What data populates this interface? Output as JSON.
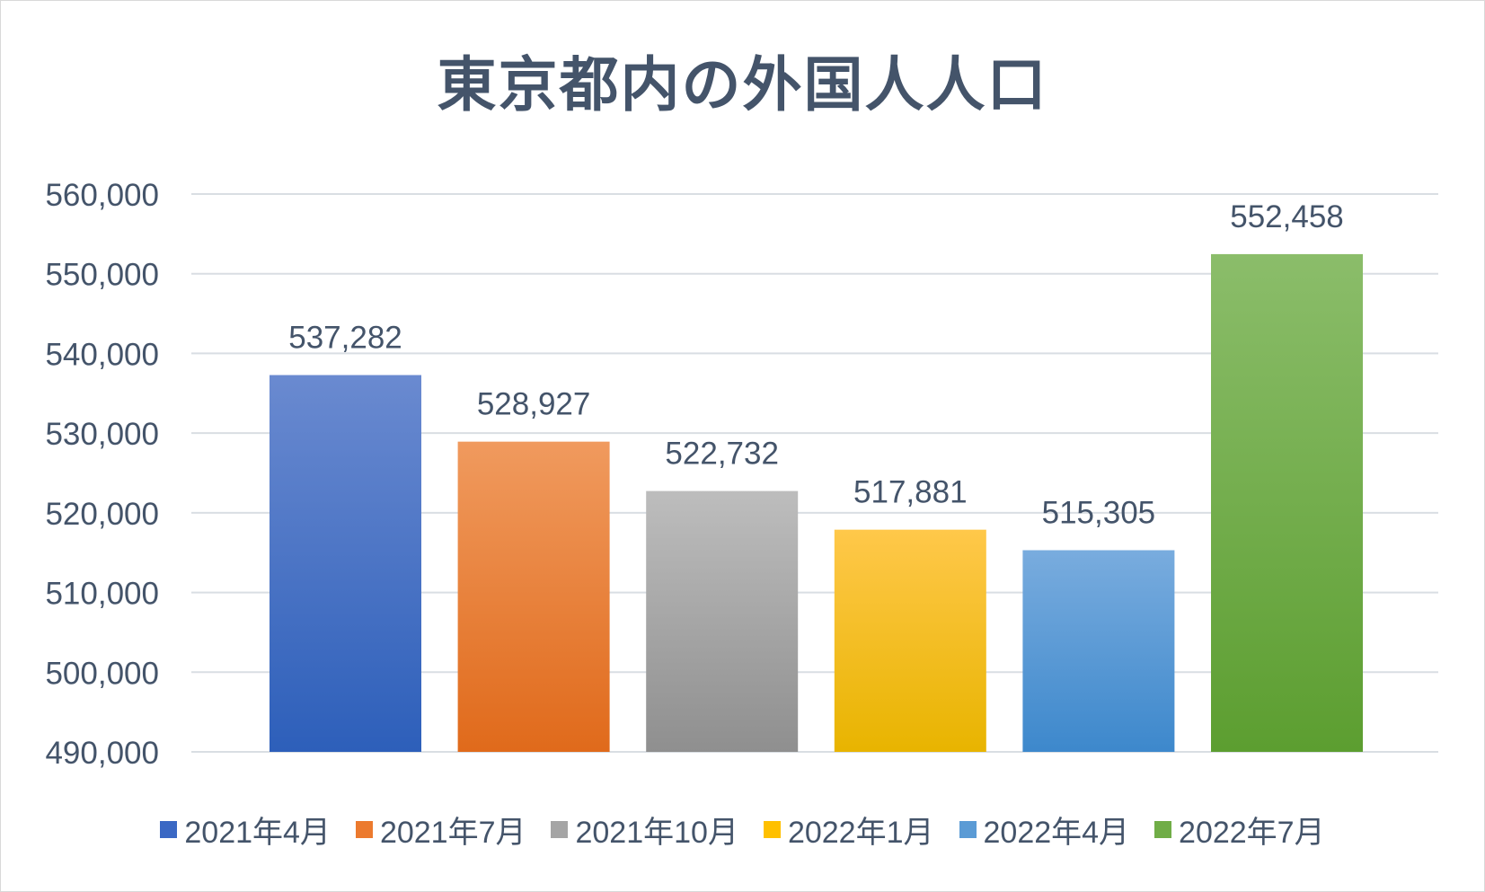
{
  "colors": {
    "text": "#44546a",
    "grid": "#d9dee3"
  },
  "chart_data": {
    "type": "bar",
    "title": "東京都内の外国人人口",
    "categories": [
      "2021年4月",
      "2021年7月",
      "2021年10月",
      "2022年1月",
      "2022年4月",
      "2022年7月"
    ],
    "values": [
      537282,
      528927,
      522732,
      517881,
      515305,
      552458
    ],
    "data_labels": [
      "537,282",
      "528,927",
      "522,732",
      "517,881",
      "515,305",
      "552,458"
    ],
    "series_colors": [
      {
        "top": "#6a8ad0",
        "bottom": "#2d5fba"
      },
      {
        "top": "#f09a5e",
        "bottom": "#e06a1b"
      },
      {
        "top": "#bdbdbd",
        "bottom": "#8f8f8f"
      },
      {
        "top": "#ffc84a",
        "bottom": "#e8b400"
      },
      {
        "top": "#79acde",
        "bottom": "#3d88cc"
      },
      {
        "top": "#8bbd6a",
        "bottom": "#5c9e30"
      }
    ],
    "legend_colors": [
      "#3a68c4",
      "#ec7a2e",
      "#a5a5a5",
      "#ffc000",
      "#5b9bd5",
      "#70ad47"
    ],
    "ylim": [
      490000,
      560000
    ],
    "yticks": [
      "490,000",
      "500,000",
      "510,000",
      "520,000",
      "530,000",
      "540,000",
      "550,000",
      "560,000"
    ],
    "ytick_values": [
      490000,
      500000,
      510000,
      520000,
      530000,
      540000,
      550000,
      560000
    ],
    "grid": true,
    "legend_position": "bottom",
    "xlabel": "",
    "ylabel": ""
  }
}
